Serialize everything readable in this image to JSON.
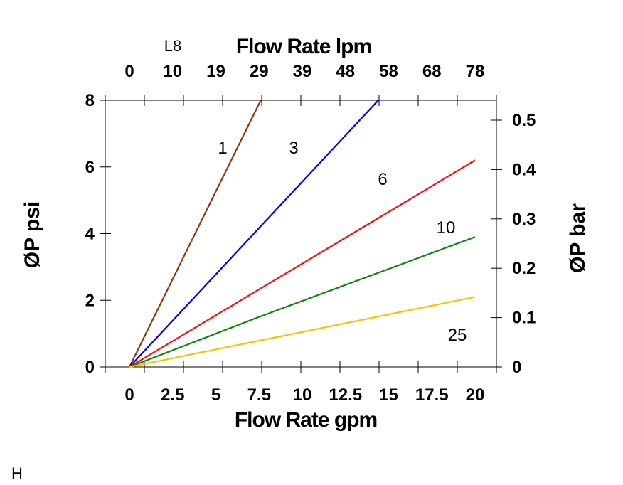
{
  "chart_data": {
    "type": "line",
    "xlabel": "Flow Rate gpm",
    "x2label": "Flow Rate lpm",
    "ylabel": "ØP psi",
    "y2label": "ØP bar",
    "corner_label": "L8",
    "footer_label": "H",
    "xticks": [
      "0",
      "2.5",
      "5",
      "7.5",
      "10",
      "12.5",
      "15",
      "17.5",
      "20"
    ],
    "x2ticks": [
      "0",
      "10",
      "19",
      "29",
      "39",
      "48",
      "58",
      "68",
      "78"
    ],
    "yticks": [
      "0",
      "2",
      "4",
      "6",
      "8"
    ],
    "y2ticks": [
      "0",
      "0.1",
      "0.2",
      "0.3",
      "0.4",
      "0.5"
    ],
    "xlim": [
      0,
      20
    ],
    "ylim": [
      0,
      8
    ],
    "y2lim": [
      0,
      0.55
    ],
    "grid": false,
    "series": [
      {
        "name": "1",
        "color": "#8B3A0F",
        "x": [
          0,
          7.6
        ],
        "y": [
          0,
          8
        ]
      },
      {
        "name": "3",
        "color": "#0000EE",
        "x": [
          0,
          14.4
        ],
        "y": [
          0,
          8
        ]
      },
      {
        "name": "6",
        "color": "#EE1111",
        "x": [
          0,
          20
        ],
        "y": [
          0,
          6.2
        ]
      },
      {
        "name": "10",
        "color": "#118811",
        "x": [
          0,
          7.5,
          20
        ],
        "y": [
          0,
          1.5,
          3.9
        ]
      },
      {
        "name": "25",
        "color": "#F5C400",
        "x": [
          0,
          20
        ],
        "y": [
          0,
          2.1
        ]
      }
    ]
  }
}
